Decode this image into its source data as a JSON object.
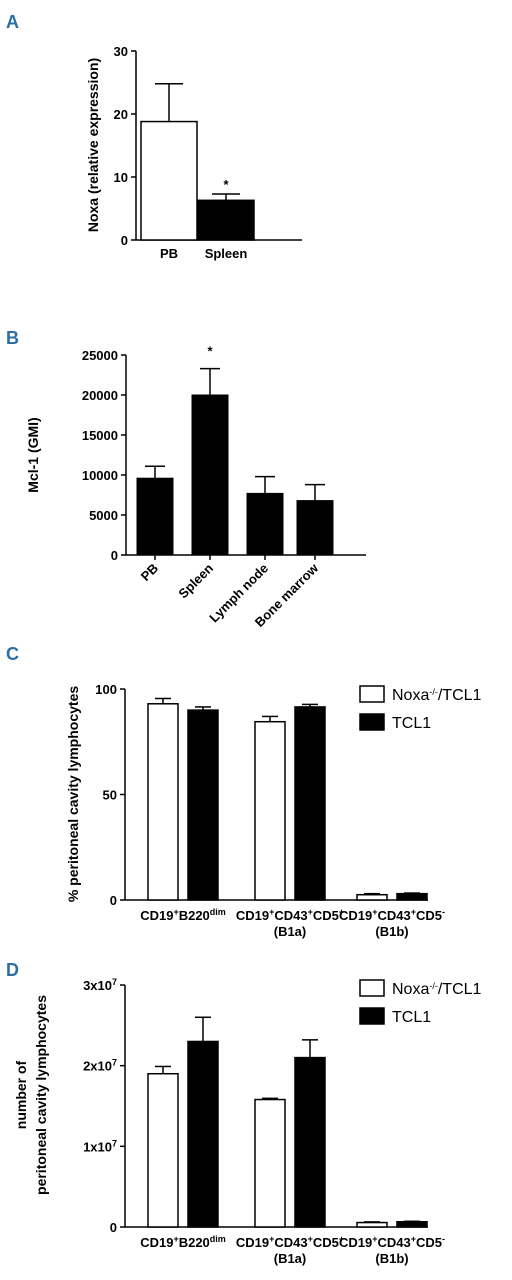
{
  "chart_data": [
    {
      "panel": "A",
      "type": "bar",
      "ylabel": "Noxa (relative expression)",
      "ylim": [
        0,
        30
      ],
      "yticks": [
        "0",
        "10",
        "20",
        "30"
      ],
      "categories": [
        "PB",
        "Spleen"
      ],
      "values": [
        18.8,
        6.3
      ],
      "errors": [
        6.0,
        1.0
      ],
      "fills": [
        "white",
        "black"
      ],
      "significance": [
        "",
        "*"
      ]
    },
    {
      "panel": "B",
      "type": "bar",
      "ylabel": "Mcl-1 (GMI)",
      "ylim": [
        0,
        25000
      ],
      "yticks": [
        "0",
        "5000",
        "10000",
        "15000",
        "20000",
        "25000"
      ],
      "categories": [
        "PB",
        "Spleen",
        "Lymph node",
        "Bone marrow"
      ],
      "values": [
        9600,
        20000,
        7700,
        6800
      ],
      "errors": [
        1500,
        3300,
        2100,
        2000
      ],
      "significance": [
        "",
        "*",
        "",
        ""
      ]
    },
    {
      "panel": "C",
      "type": "bar",
      "ylabel": "% peritoneal cavity lymphocytes",
      "ylim": [
        0,
        100
      ],
      "yticks": [
        "0",
        "50",
        "100"
      ],
      "categories": [
        {
          "line1": "CD19+B220dim",
          "line2": ""
        },
        {
          "line1": "CD19+CD43+CD5+",
          "line2": "(B1a)"
        },
        {
          "line1": "CD19+CD43+CD5-",
          "line2": "(B1b)"
        }
      ],
      "series": [
        {
          "name": "Noxa-/-/TCL1",
          "values": [
            93,
            84.5,
            2.5
          ],
          "errors": [
            2.5,
            2.5,
            0.5
          ]
        },
        {
          "name": "TCL1",
          "values": [
            90,
            91.5,
            3.0
          ],
          "errors": [
            1.5,
            1.2,
            0.3
          ]
        }
      ],
      "legend_position": "top-right"
    },
    {
      "panel": "D",
      "type": "bar",
      "ylabel_line1": "number of",
      "ylabel_line2": "peritoneal cavity lymphocytes",
      "ylim": [
        0,
        30000000
      ],
      "yticks": [
        "0",
        "1x10",
        "2x10",
        "3x10"
      ],
      "ytick_exp": "7",
      "categories": [
        {
          "line1": "CD19+B220dim",
          "line2": ""
        },
        {
          "line1": "CD19+CD43+CD5+",
          "line2": "(B1a)"
        },
        {
          "line1": "CD19+CD43+CD5-",
          "line2": "(B1b)"
        }
      ],
      "series": [
        {
          "name": "Noxa-/-/TCL1",
          "values": [
            19000000,
            15800000,
            550000
          ],
          "errors": [
            900000,
            150000,
            80000
          ]
        },
        {
          "name": "TCL1",
          "values": [
            23000000,
            21000000,
            650000
          ],
          "errors": [
            3000000,
            2200000,
            60000
          ]
        }
      ],
      "legend_position": "top-right"
    }
  ]
}
